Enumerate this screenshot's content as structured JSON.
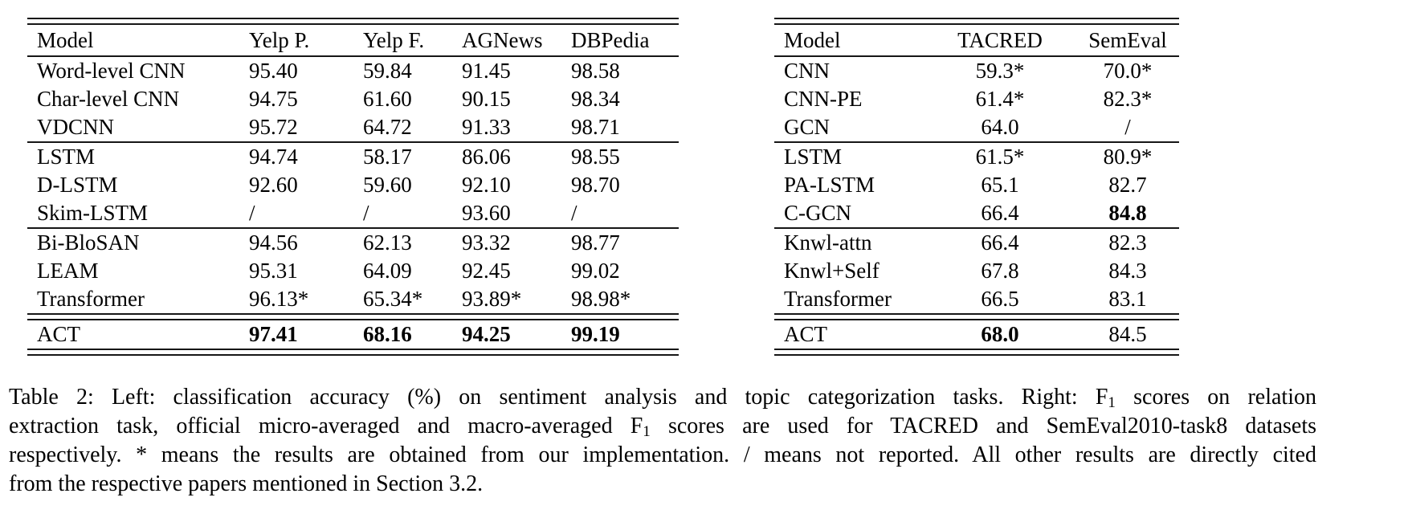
{
  "colors": {
    "background": "#ffffff",
    "text": "#000000",
    "rule": "#161616"
  },
  "tables": {
    "left": {
      "name": "classification-accuracy-table",
      "columns": [
        "Model",
        "Yelp P.",
        "Yelp F.",
        "AGNews",
        "DBPedia"
      ],
      "groups": [
        {
          "rows": [
            {
              "cells": [
                "Word-level CNN",
                "95.40",
                "59.84",
                "91.45",
                "98.58"
              ]
            },
            {
              "cells": [
                "Char-level CNN",
                "94.75",
                "61.60",
                "90.15",
                "98.34"
              ]
            },
            {
              "cells": [
                "VDCNN",
                "95.72",
                "64.72",
                "91.33",
                "98.71"
              ]
            }
          ]
        },
        {
          "rule_above": "single",
          "rows": [
            {
              "cells": [
                "LSTM",
                "94.74",
                "58.17",
                "86.06",
                "98.55"
              ]
            },
            {
              "cells": [
                "D-LSTM",
                "92.60",
                "59.60",
                "92.10",
                "98.70"
              ]
            },
            {
              "cells": [
                "Skim-LSTM",
                "/",
                "/",
                "93.60",
                "/"
              ]
            }
          ]
        },
        {
          "rule_above": "single",
          "rows": [
            {
              "cells": [
                "Bi-BloSAN",
                "94.56",
                "62.13",
                "93.32",
                "98.77"
              ]
            },
            {
              "cells": [
                "LEAM",
                "95.31",
                "64.09",
                "92.45",
                "99.02"
              ]
            },
            {
              "cells": [
                "Transformer",
                "96.13*",
                "65.34*",
                "93.89*",
                "98.98*"
              ]
            }
          ]
        },
        {
          "rule_above": "double",
          "rows": [
            {
              "cells": [
                "ACT",
                {
                  "t": "97.41",
                  "b": true
                },
                {
                  "t": "68.16",
                  "b": true
                },
                {
                  "t": "94.25",
                  "b": true
                },
                {
                  "t": "99.19",
                  "b": true
                }
              ]
            }
          ]
        }
      ]
    },
    "right": {
      "name": "relation-extraction-table",
      "columns": [
        "Model",
        "TACRED",
        "SemEval"
      ],
      "groups": [
        {
          "rows": [
            {
              "cells": [
                "CNN",
                "59.3*",
                "70.0*"
              ]
            },
            {
              "cells": [
                "CNN-PE",
                "61.4*",
                "82.3*"
              ]
            },
            {
              "cells": [
                "GCN",
                "64.0",
                "/"
              ]
            }
          ]
        },
        {
          "rule_above": "single",
          "rows": [
            {
              "cells": [
                "LSTM",
                "61.5*",
                "80.9*"
              ]
            },
            {
              "cells": [
                "PA-LSTM",
                "65.1",
                "82.7"
              ]
            },
            {
              "cells": [
                "C-GCN",
                "66.4",
                {
                  "t": "84.8",
                  "b": true
                }
              ]
            }
          ]
        },
        {
          "rule_above": "single",
          "rows": [
            {
              "cells": [
                "Knwl-attn",
                "66.4",
                "82.3"
              ]
            },
            {
              "cells": [
                "Knwl+Self",
                "67.8",
                "84.3"
              ]
            },
            {
              "cells": [
                "Transformer",
                "66.5",
                "83.1"
              ]
            }
          ]
        },
        {
          "rule_above": "double",
          "rows": [
            {
              "cells": [
                "ACT",
                {
                  "t": "68.0",
                  "b": true
                },
                "84.5"
              ]
            }
          ]
        }
      ]
    }
  },
  "caption": {
    "lines": [
      {
        "justify": true,
        "segments": [
          {
            "t": "Table 2: Left: classification accuracy (%) on sentiment analysis and topic categorization tasks. Right: F"
          },
          {
            "t": "1",
            "sub": true
          },
          {
            "t": " scores on relation"
          }
        ]
      },
      {
        "justify": true,
        "segments": [
          {
            "t": "extraction task, official micro-averaged and macro-averaged F"
          },
          {
            "t": "1",
            "sub": true
          },
          {
            "t": " scores are used for TACRED and SemEval2010-task8 datasets"
          }
        ]
      },
      {
        "justify": true,
        "segments": [
          {
            "t": "respectively. * means the results are obtained from our implementation. / means not reported. All other results are directly cited"
          }
        ]
      },
      {
        "justify": false,
        "segments": [
          {
            "t": "from the respective papers mentioned in Section 3.2."
          }
        ]
      }
    ]
  }
}
